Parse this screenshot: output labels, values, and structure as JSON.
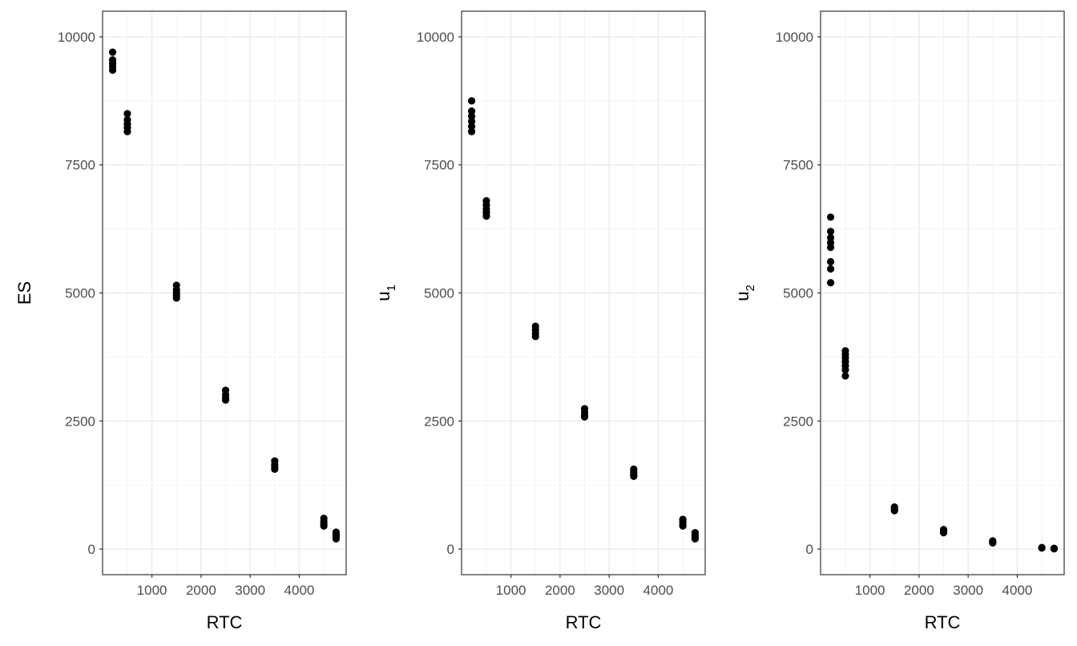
{
  "chart_data": [
    {
      "type": "scatter",
      "xlabel": "RTC",
      "ylabel": "ES",
      "ylabel_subscript": "",
      "xlim": [
        -5,
        4955
      ],
      "ylim": [
        -500,
        10500
      ],
      "x_ticks": [
        1000,
        2000,
        3000,
        4000
      ],
      "y_ticks": [
        0,
        2500,
        5000,
        7500,
        10000
      ],
      "grid": true,
      "point_color": "#000000",
      "points": [
        [
          200,
          9700
        ],
        [
          200,
          9550
        ],
        [
          200,
          9480
        ],
        [
          200,
          9420
        ],
        [
          200,
          9350
        ],
        [
          500,
          8500
        ],
        [
          500,
          8380
        ],
        [
          500,
          8300
        ],
        [
          500,
          8230
        ],
        [
          500,
          8150
        ],
        [
          1500,
          5150
        ],
        [
          1500,
          5060
        ],
        [
          1500,
          5000
        ],
        [
          1500,
          4950
        ],
        [
          1500,
          4900
        ],
        [
          2500,
          3100
        ],
        [
          2500,
          3020
        ],
        [
          2500,
          2960
        ],
        [
          2500,
          2910
        ],
        [
          3500,
          1720
        ],
        [
          3500,
          1650
        ],
        [
          3500,
          1600
        ],
        [
          3500,
          1560
        ],
        [
          4500,
          600
        ],
        [
          4500,
          540
        ],
        [
          4500,
          490
        ],
        [
          4500,
          450
        ],
        [
          4750,
          330
        ],
        [
          4750,
          280
        ],
        [
          4750,
          240
        ],
        [
          4750,
          200
        ]
      ]
    },
    {
      "type": "scatter",
      "xlabel": "RTC",
      "ylabel": "u",
      "ylabel_subscript": "1",
      "xlim": [
        -5,
        4955
      ],
      "ylim": [
        -500,
        10500
      ],
      "x_ticks": [
        1000,
        2000,
        3000,
        4000
      ],
      "y_ticks": [
        0,
        2500,
        5000,
        7500,
        10000
      ],
      "grid": true,
      "point_color": "#000000",
      "points": [
        [
          200,
          8750
        ],
        [
          200,
          8550
        ],
        [
          200,
          8450
        ],
        [
          200,
          8350
        ],
        [
          200,
          8250
        ],
        [
          200,
          8150
        ],
        [
          500,
          6800
        ],
        [
          500,
          6720
        ],
        [
          500,
          6640
        ],
        [
          500,
          6570
        ],
        [
          500,
          6500
        ],
        [
          1500,
          4350
        ],
        [
          1500,
          4280
        ],
        [
          1500,
          4210
        ],
        [
          1500,
          4150
        ],
        [
          2500,
          2740
        ],
        [
          2500,
          2670
        ],
        [
          2500,
          2610
        ],
        [
          2500,
          2580
        ],
        [
          3500,
          1560
        ],
        [
          3500,
          1500
        ],
        [
          3500,
          1450
        ],
        [
          3500,
          1420
        ],
        [
          4500,
          580
        ],
        [
          4500,
          530
        ],
        [
          4500,
          480
        ],
        [
          4500,
          450
        ],
        [
          4750,
          320
        ],
        [
          4750,
          270
        ],
        [
          4750,
          230
        ],
        [
          4750,
          200
        ]
      ]
    },
    {
      "type": "scatter",
      "xlabel": "RTC",
      "ylabel": "u",
      "ylabel_subscript": "2",
      "xlim": [
        -5,
        4955
      ],
      "ylim": [
        -500,
        10500
      ],
      "x_ticks": [
        1000,
        2000,
        3000,
        4000
      ],
      "y_ticks": [
        0,
        2500,
        5000,
        7500,
        10000
      ],
      "grid": true,
      "point_color": "#000000",
      "points": [
        [
          200,
          6480
        ],
        [
          200,
          6200
        ],
        [
          200,
          6080
        ],
        [
          200,
          5980
        ],
        [
          200,
          5890
        ],
        [
          200,
          5610
        ],
        [
          200,
          5470
        ],
        [
          200,
          5200
        ],
        [
          500,
          3870
        ],
        [
          500,
          3800
        ],
        [
          500,
          3730
        ],
        [
          500,
          3660
        ],
        [
          500,
          3580
        ],
        [
          500,
          3500
        ],
        [
          500,
          3380
        ],
        [
          1500,
          820
        ],
        [
          1500,
          780
        ],
        [
          1500,
          750
        ],
        [
          2500,
          380
        ],
        [
          2500,
          350
        ],
        [
          2500,
          320
        ],
        [
          3500,
          160
        ],
        [
          3500,
          140
        ],
        [
          3500,
          120
        ],
        [
          4500,
          30
        ],
        [
          4500,
          20
        ],
        [
          4750,
          15
        ],
        [
          4750,
          5
        ]
      ]
    }
  ]
}
